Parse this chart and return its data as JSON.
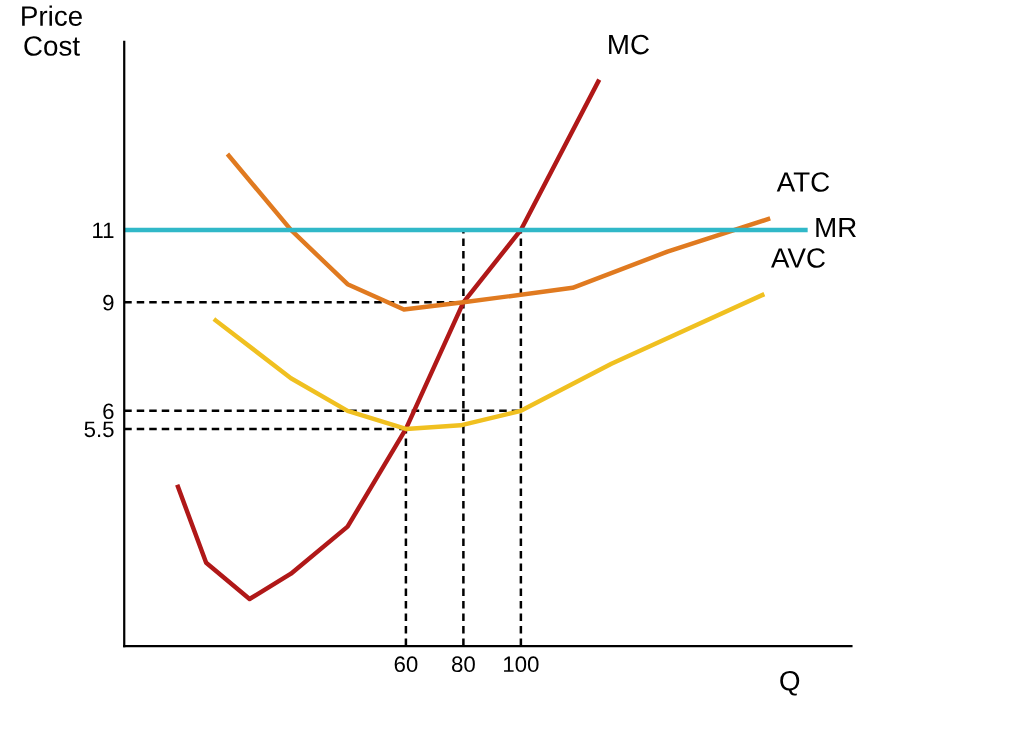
{
  "chart_data": {
    "type": "line",
    "xlabel": "Q",
    "ylabel": "Price\nCost",
    "xlim": [
      -38,
      215
    ],
    "ylim": [
      -0.5,
      16.2
    ],
    "xticks": [
      60,
      80,
      100
    ],
    "yticks": [
      5.5,
      6,
      9,
      11
    ],
    "grid": false,
    "legend": false,
    "marker": "none",
    "series": [
      {
        "name": "MC",
        "color": "#b01818",
        "x": [
          -19.3,
          -9.5,
          5.6,
          20,
          39.7,
          60,
          80,
          100,
          126.9
        ],
        "values": [
          3.9,
          1.8,
          0.8,
          1.5,
          2.8,
          5.5,
          9,
          11,
          15.1
        ]
      },
      {
        "name": "ATC",
        "color": "#e07a20",
        "x": [
          -1.6,
          20,
          39.7,
          59.3,
          80,
          118,
          151,
          186
        ],
        "values": [
          13.05,
          11,
          9.5,
          8.8,
          9,
          9.4,
          10.4,
          11.3
        ]
      },
      {
        "name": "AVC",
        "color": "#f0c020",
        "x": [
          -6.2,
          20,
          39.7,
          60,
          79,
          100,
          131.5,
          184
        ],
        "values": [
          8.5,
          6.9,
          6,
          5.5,
          5.6,
          6,
          7.3,
          9.2
        ]
      },
      {
        "name": "MR",
        "color": "#30b8c8",
        "x": [
          -38,
          199
        ],
        "values": [
          11,
          11
        ]
      },
      {
        "color": "#000000",
        "line_style": "dashed",
        "x": [
          -38,
          80
        ],
        "values": [
          9,
          9
        ]
      },
      {
        "color": "#000000",
        "line_style": "dashed",
        "x": [
          -38,
          100
        ],
        "values": [
          6,
          6
        ]
      },
      {
        "color": "#000000",
        "line_style": "dashed",
        "x": [
          -38,
          60
        ],
        "values": [
          5.5,
          5.5
        ]
      },
      {
        "color": "#000000",
        "line_style": "dashed",
        "x": [
          60,
          60
        ],
        "values": [
          -0.5,
          5.5
        ]
      },
      {
        "color": "#000000",
        "line_style": "dashed",
        "x": [
          80,
          80
        ],
        "values": [
          -0.5,
          11
        ]
      },
      {
        "color": "#000000",
        "line_style": "dashed",
        "x": [
          100,
          100
        ],
        "values": [
          -0.5,
          11
        ]
      }
    ]
  }
}
